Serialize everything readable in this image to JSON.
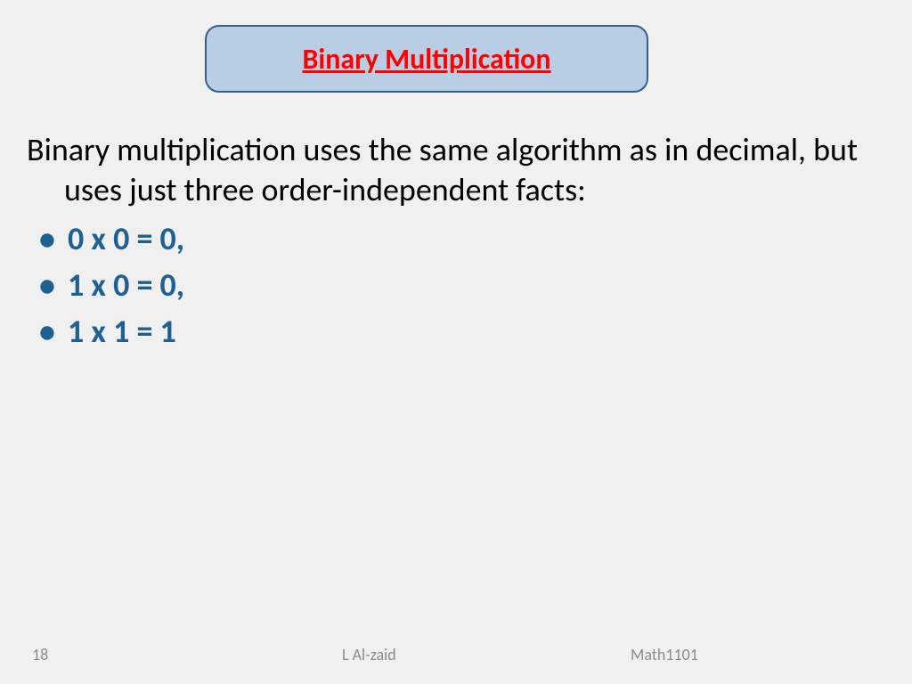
{
  "title": {
    "text": "Binary Multiplication",
    "color": "#ff0000",
    "box_fill": "#b9cde5",
    "box_border": "#385d8a",
    "box_border_width": 2,
    "font_size": 32
  },
  "paragraph": {
    "text": "Binary multiplication uses the same algorithm as in decimal, but uses just three order-independent facts:",
    "color": "#000000",
    "font_size": 36
  },
  "bullets": {
    "items": [
      " 0 x 0 = 0,",
      " 1 x 0 = 0,",
      "1 x 1 = 1"
    ],
    "text_color": "#1f6093",
    "bullet_color": "#1f6093",
    "font_size": 36
  },
  "footer": {
    "slide_number": "18",
    "author": "L Al-zaid",
    "course": "Math1101",
    "color": "#8c8c8c",
    "font_size": 18
  },
  "background_color": "#f0f0f0"
}
